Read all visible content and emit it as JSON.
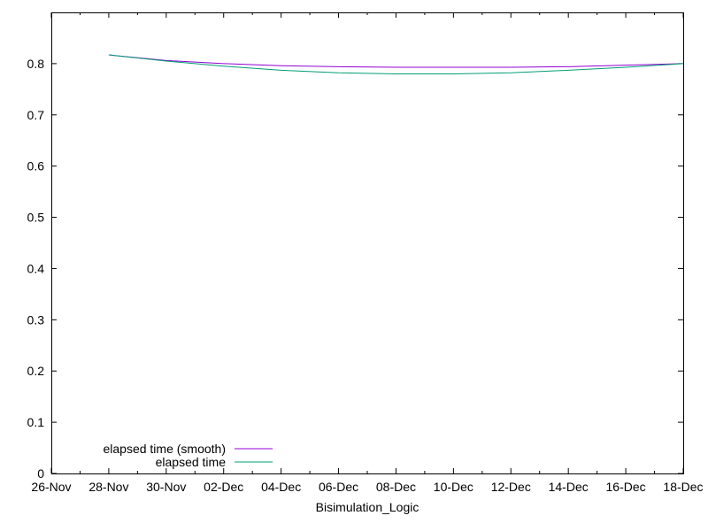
{
  "chart_data": {
    "type": "line",
    "title": "",
    "xlabel": "Bisimulation_Logic",
    "ylabel": "",
    "x_tick_labels": [
      "26-Nov",
      "28-Nov",
      "30-Nov",
      "02-Dec",
      "04-Dec",
      "06-Dec",
      "08-Dec",
      "10-Dec",
      "12-Dec",
      "14-Dec",
      "16-Dec",
      "18-Dec"
    ],
    "y_tick_labels": [
      "0",
      "0.1",
      "0.2",
      "0.3",
      "0.4",
      "0.5",
      "0.6",
      "0.7",
      "0.8"
    ],
    "xlim": [
      "26-Nov",
      "18-Dec"
    ],
    "ylim": [
      0,
      0.9
    ],
    "grid": false,
    "legend_position": "bottom-left",
    "series": [
      {
        "name": "elapsed time (smooth)",
        "color": "#9400d3",
        "x": [
          "28-Nov",
          "30-Nov",
          "02-Dec",
          "04-Dec",
          "06-Dec",
          "08-Dec",
          "10-Dec",
          "12-Dec",
          "14-Dec",
          "16-Dec",
          "18-Dec"
        ],
        "y": [
          0.817,
          0.806,
          0.8,
          0.796,
          0.794,
          0.793,
          0.793,
          0.793,
          0.794,
          0.797,
          0.8
        ]
      },
      {
        "name": "elapsed time",
        "color": "#009e73",
        "x": [
          "28-Nov",
          "30-Nov",
          "02-Dec",
          "04-Dec",
          "06-Dec",
          "08-Dec",
          "10-Dec",
          "12-Dec",
          "14-Dec",
          "16-Dec",
          "18-Dec"
        ],
        "y": [
          0.817,
          0.805,
          0.795,
          0.787,
          0.782,
          0.78,
          0.78,
          0.782,
          0.787,
          0.793,
          0.8
        ]
      }
    ]
  }
}
